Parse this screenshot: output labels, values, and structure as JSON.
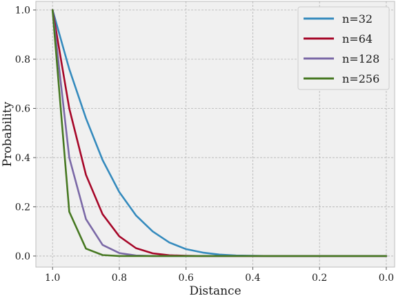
{
  "chart_data": {
    "type": "line",
    "xlabel": "Distance",
    "ylabel": "Probability",
    "xlim": [
      1.05,
      -0.025
    ],
    "ylim": [
      -0.045,
      1.035
    ],
    "x_reversed": true,
    "xticks": [
      1.0,
      0.8,
      0.6,
      0.4,
      0.2,
      0.0
    ],
    "xtick_labels": [
      "1.0",
      "0.8",
      "0.6",
      "0.4",
      "0.2",
      "0.0"
    ],
    "yticks": [
      0.0,
      0.2,
      0.4,
      0.6,
      0.8,
      1.0
    ],
    "ytick_labels": [
      "0.0",
      "0.2",
      "0.4",
      "0.6",
      "0.8",
      "1.0"
    ],
    "grid": true,
    "legend_position": "top-right",
    "x": [
      1.0,
      0.95,
      0.9,
      0.85,
      0.8,
      0.75,
      0.7,
      0.65,
      0.6,
      0.55,
      0.5,
      0.45,
      0.4,
      0.35,
      0.3,
      0.25,
      0.2,
      0.15,
      0.1,
      0.05,
      0.0
    ],
    "series": [
      {
        "name": "n=32",
        "color": "#348abd",
        "values": [
          1.0,
          0.76,
          0.56,
          0.39,
          0.26,
          0.165,
          0.1,
          0.055,
          0.028,
          0.014,
          0.006,
          0.002,
          0.001,
          0.0,
          0.0,
          0.0,
          0.0,
          0.0,
          0.0,
          0.0,
          0.0
        ]
      },
      {
        "name": "n=64",
        "color": "#a60628",
        "values": [
          1.0,
          0.6,
          0.33,
          0.17,
          0.08,
          0.032,
          0.011,
          0.003,
          0.001,
          0.0,
          0.0,
          0.0,
          0.0,
          0.0,
          0.0,
          0.0,
          0.0,
          0.0,
          0.0,
          0.0,
          0.0
        ]
      },
      {
        "name": "n=128",
        "color": "#7a68a6",
        "values": [
          1.0,
          0.4,
          0.15,
          0.045,
          0.012,
          0.002,
          0.0,
          0.0,
          0.0,
          0.0,
          0.0,
          0.0,
          0.0,
          0.0,
          0.0,
          0.0,
          0.0,
          0.0,
          0.0,
          0.0,
          0.0
        ]
      },
      {
        "name": "n=256",
        "color": "#467821",
        "values": [
          1.0,
          0.18,
          0.03,
          0.004,
          0.0,
          0.0,
          0.0,
          0.0,
          0.0,
          0.0,
          0.0,
          0.0,
          0.0,
          0.0,
          0.0,
          0.0,
          0.0,
          0.0,
          0.0,
          0.0,
          0.0
        ]
      }
    ]
  }
}
